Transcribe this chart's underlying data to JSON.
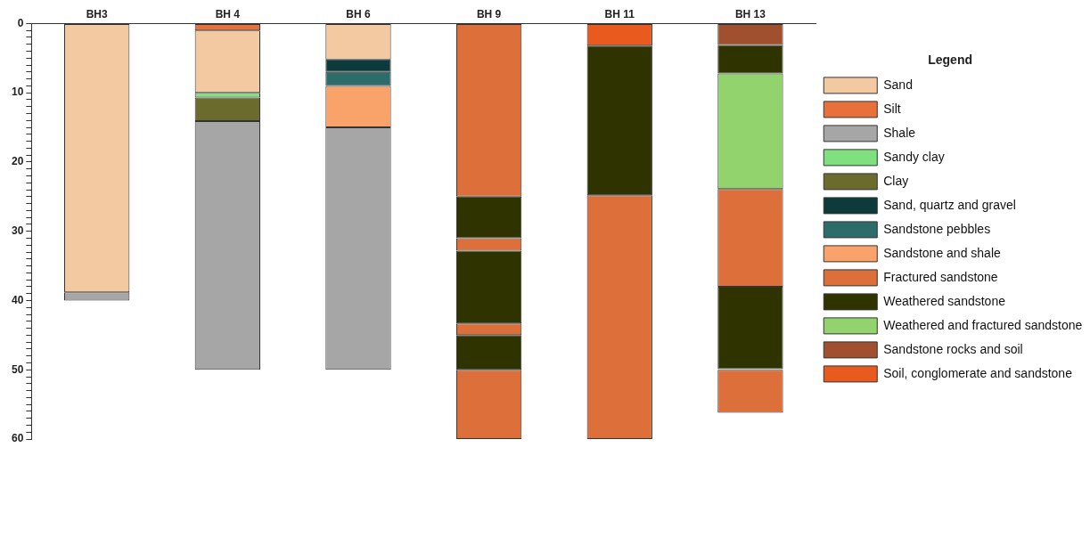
{
  "chart_data": {
    "type": "bar",
    "legend_title": "Legend",
    "legend": "right",
    "grid": false,
    "categories": [
      "BH3",
      "BH 4",
      "BH 6",
      "BH 9",
      "BH 11",
      "BH 13"
    ],
    "ylim": [
      60,
      0
    ],
    "yticks": [
      0,
      {
        "value": 1,
        "label": null
      },
      {
        "value": 2,
        "label": null
      },
      {
        "value": 3,
        "label": null
      },
      {
        "value": 4,
        "label": null
      },
      {
        "value": 5,
        "label": null
      },
      {
        "value": 6,
        "label": null
      },
      {
        "value": 7,
        "label": null
      },
      {
        "value": 8,
        "label": null
      },
      {
        "value": 9,
        "label": null
      },
      10,
      {
        "value": 11,
        "label": null
      },
      {
        "value": 12,
        "label": null
      },
      {
        "value": 13,
        "label": null
      },
      {
        "value": 14,
        "label": null
      },
      {
        "value": 15,
        "label": null
      },
      {
        "value": 16,
        "label": null
      },
      {
        "value": 17,
        "label": null
      },
      {
        "value": 18,
        "label": null
      },
      {
        "value": 19,
        "label": null
      },
      20,
      {
        "value": 21,
        "label": null
      },
      {
        "value": 22,
        "label": null
      },
      {
        "value": 23,
        "label": null
      },
      {
        "value": 24,
        "label": null
      },
      {
        "value": 25,
        "label": null
      },
      {
        "value": 26,
        "label": null
      },
      {
        "value": 27,
        "label": null
      },
      {
        "value": 28,
        "label": null
      },
      {
        "value": 29,
        "label": null
      },
      30,
      {
        "value": 31,
        "label": null
      },
      {
        "value": 32,
        "label": null
      },
      {
        "value": 33,
        "label": null
      },
      {
        "value": 34,
        "label": null
      },
      {
        "value": 35,
        "label": null
      },
      {
        "value": 36,
        "label": null
      },
      {
        "value": 37,
        "label": null
      },
      {
        "value": 38,
        "label": null
      },
      {
        "value": 39,
        "label": null
      },
      40,
      {
        "value": 41,
        "label": null
      },
      {
        "value": 42,
        "label": null
      },
      {
        "value": 43,
        "label": null
      },
      {
        "value": 44,
        "label": null
      },
      {
        "value": 45,
        "label": null
      },
      {
        "value": 46,
        "label": null
      },
      {
        "value": 47,
        "label": null
      },
      {
        "value": 48,
        "label": null
      },
      {
        "value": 49,
        "label": null
      },
      50,
      {
        "value": 51,
        "label": null
      },
      {
        "value": 52,
        "label": null
      },
      {
        "value": 53,
        "label": null
      },
      {
        "value": 54,
        "label": null
      },
      {
        "value": 55,
        "label": null
      },
      {
        "value": 56,
        "label": null
      },
      {
        "value": 57,
        "label": null
      },
      {
        "value": 58,
        "label": null
      },
      {
        "value": 59,
        "label": null
      },
      60
    ],
    "series": [
      {
        "name": "Sand",
        "color": "#f2c9a0",
        "values": [
          38.8,
          9,
          5.2,
          null,
          null,
          null
        ],
        "base": [
          0,
          1,
          0,
          null,
          null,
          null
        ]
      },
      {
        "name": "Silt",
        "color": "#e8703a",
        "values": [
          null,
          1,
          null,
          null,
          null,
          null
        ],
        "base": [
          null,
          0,
          null,
          null,
          null,
          null
        ]
      },
      {
        "name": "Shale",
        "color": "#a6a6a6",
        "values": [
          1.2,
          35.9,
          35,
          null,
          null,
          null
        ],
        "base": [
          38.8,
          14.1,
          15,
          null,
          null,
          null
        ]
      },
      {
        "name": "Sandy clay",
        "color": "#7ee07e",
        "values": [
          null,
          0.7,
          null,
          null,
          null,
          null
        ],
        "base": [
          null,
          10,
          null,
          null,
          null,
          null
        ]
      },
      {
        "name": "Clay",
        "color": "#6b6b2e",
        "values": [
          null,
          3.4,
          null,
          null,
          null,
          null
        ],
        "base": [
          null,
          10.7,
          null,
          null,
          null,
          null
        ]
      },
      {
        "name": "Sand, quartz and gravel",
        "color": "#0d3b3b",
        "values": [
          null,
          null,
          1.8,
          null,
          null,
          null
        ],
        "base": [
          null,
          null,
          5.2,
          null,
          null,
          null
        ]
      },
      {
        "name": "Sandstone pebbles",
        "color": "#2e6b6b",
        "values": [
          null,
          null,
          2,
          null,
          null,
          null
        ],
        "base": [
          null,
          null,
          7,
          null,
          null,
          null
        ]
      },
      {
        "name": "Sandstone and shale",
        "color": "#f9a36b",
        "values": [
          null,
          null,
          6,
          null,
          null,
          null
        ],
        "base": [
          null,
          null,
          9,
          null,
          null,
          null
        ]
      },
      {
        "name": "Fractured sandstone",
        "color": "#dd6f3a",
        "values": [
          null,
          null,
          null,
          25,
          35.2,
          14.1
        ],
        "base": [
          null,
          null,
          null,
          0,
          24.8,
          23.9
        ]
      },
      {
        "name": "Weathered sandstone",
        "color": "#2e3300",
        "values": [
          null,
          null,
          null,
          6,
          21.6,
          4.1
        ],
        "base": [
          null,
          null,
          null,
          25,
          3.2,
          3.1
        ]
      },
      {
        "name": "Weathered and fractured sandstone",
        "color": "#92d36e",
        "values": [
          null,
          null,
          null,
          null,
          null,
          16.7
        ],
        "base": [
          null,
          null,
          null,
          null,
          null,
          7.2
        ]
      },
      {
        "name": "Sandstone rocks and soil",
        "color": "#a0502e",
        "values": [
          null,
          null,
          null,
          null,
          null,
          3.1
        ],
        "base": [
          null,
          null,
          null,
          null,
          null,
          0
        ]
      },
      {
        "name": "Soil, conglomerate and sandstone",
        "color": "#e85a1e",
        "values": [
          null,
          null,
          null,
          null,
          3.2,
          null
        ],
        "base": [
          null,
          null,
          null,
          null,
          0,
          null
        ]
      },
      {
        "color": "#dd6f3a",
        "values": [
          null,
          null,
          null,
          1.8,
          null,
          6.2
        ],
        "base": [
          null,
          null,
          null,
          31,
          null,
          50
        ]
      },
      {
        "color": "#2e3300",
        "values": [
          null,
          null,
          null,
          10.5,
          null,
          11.9
        ],
        "base": [
          null,
          null,
          null,
          32.8,
          null,
          38
        ]
      },
      {
        "color": "#dd6f3a",
        "values": [
          null,
          null,
          null,
          1.7,
          null,
          null
        ],
        "base": [
          null,
          null,
          null,
          43.3,
          null,
          null
        ]
      },
      {
        "color": "#2e3300",
        "values": [
          null,
          null,
          null,
          5,
          null,
          null
        ],
        "base": [
          null,
          null,
          null,
          45,
          null,
          null
        ]
      },
      {
        "color": "#dd6f3a",
        "values": [
          null,
          null,
          null,
          10,
          null,
          null
        ],
        "base": [
          null,
          null,
          null,
          50,
          null,
          null
        ]
      }
    ]
  }
}
